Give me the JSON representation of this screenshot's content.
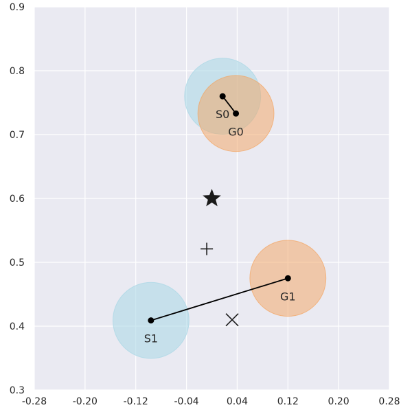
{
  "chart_data": {
    "type": "scatter",
    "xlim": [
      -0.28,
      0.28
    ],
    "ylim": [
      0.3,
      0.9
    ],
    "x_ticks": [
      "-0.28",
      "-0.20",
      "-0.12",
      "-0.04",
      "0.04",
      "0.12",
      "0.20",
      "0.28"
    ],
    "y_ticks": [
      "0.3",
      "0.4",
      "0.5",
      "0.6",
      "0.7",
      "0.8",
      "0.9"
    ],
    "grid": true,
    "background_color": "#eaeaf2",
    "start_color": "#add8e6",
    "goal_color": "#f4a460",
    "circle_radius": 0.06,
    "pairs": [
      {
        "start": {
          "label": "S0",
          "x": 0.017,
          "y": 0.76
        },
        "goal": {
          "label": "G0",
          "x": 0.038,
          "y": 0.733
        }
      },
      {
        "start": {
          "label": "S1",
          "x": -0.096,
          "y": 0.409
        },
        "goal": {
          "label": "G1",
          "x": 0.12,
          "y": 0.475
        }
      }
    ],
    "markers": [
      {
        "kind": "star",
        "x": 0.0,
        "y": 0.6
      },
      {
        "kind": "plus",
        "x": -0.008,
        "y": 0.521
      },
      {
        "kind": "cross",
        "x": 0.032,
        "y": 0.41
      }
    ]
  }
}
